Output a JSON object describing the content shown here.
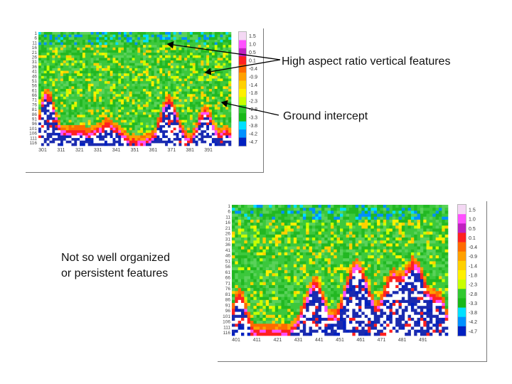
{
  "annotations": {
    "high_aspect": "High aspect ratio vertical features",
    "ground": "Ground intercept",
    "organized_line1": "Not so well organized",
    "organized_line2": "or persistent features"
  },
  "colorbar": {
    "labels": [
      "1.5",
      "1.0",
      "0.5",
      "0.1",
      "-0.4",
      "-0.9",
      "-1.4",
      "-1.8",
      "-2.3",
      "-2.8",
      "-3.3",
      "-3.8",
      "-4.2",
      "-4.7"
    ],
    "colors": [
      "#f4d8f4",
      "#ff50ff",
      "#c020c0",
      "#ff2020",
      "#ff6a00",
      "#ffa000",
      "#ffd000",
      "#fff000",
      "#c8ff00",
      "#30c830",
      "#18b818",
      "#00e0ff",
      "#0090ff",
      "#0020c0"
    ]
  },
  "panel_top": {
    "y_ticks": [
      "1",
      "6",
      "11",
      "16",
      "21",
      "26",
      "31",
      "36",
      "41",
      "46",
      "51",
      "56",
      "61",
      "66",
      "71",
      "76",
      "81",
      "86",
      "91",
      "96",
      "101",
      "106",
      "111",
      "116"
    ],
    "x_ticks": [
      "301",
      "311",
      "321",
      "331",
      "341",
      "351",
      "361",
      "371",
      "381",
      "391"
    ]
  },
  "panel_bottom": {
    "y_ticks": [
      "1",
      "6",
      "11",
      "16",
      "21",
      "26",
      "31",
      "36",
      "41",
      "46",
      "51",
      "56",
      "61",
      "66",
      "71",
      "76",
      "81",
      "86",
      "91",
      "96",
      "101",
      "106",
      "111",
      "116"
    ],
    "x_ticks": [
      "401",
      "411",
      "421",
      "431",
      "441",
      "451",
      "461",
      "471",
      "481",
      "491"
    ]
  }
}
